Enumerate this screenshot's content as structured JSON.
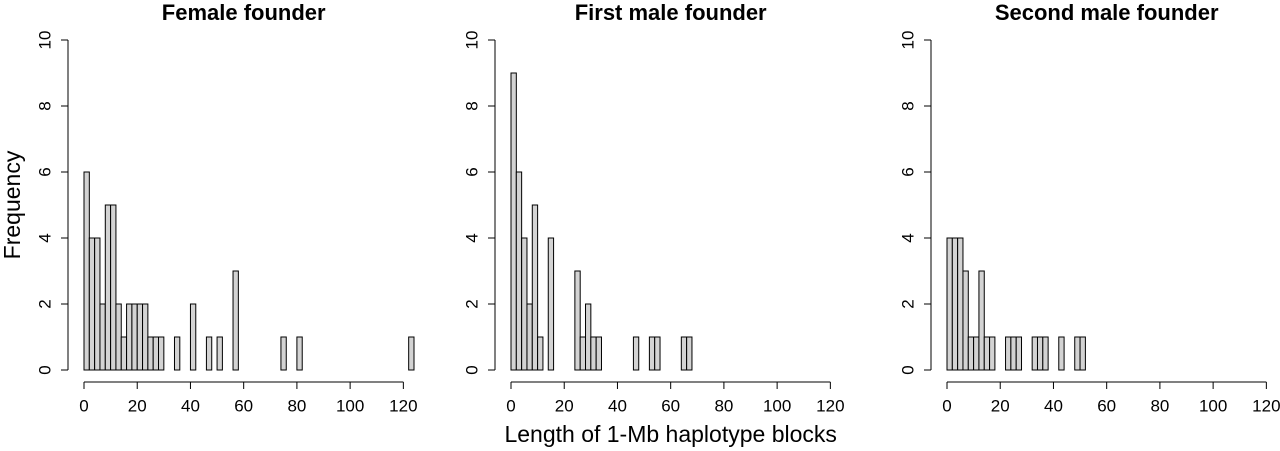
{
  "chart_data": [
    {
      "type": "histogram",
      "title": "Female founder",
      "ylabel": "Frequency",
      "bins": [
        0,
        2,
        4,
        6,
        8,
        10,
        12,
        14,
        16,
        18,
        20,
        22,
        24,
        26,
        28,
        30,
        32,
        34,
        36,
        38,
        40,
        42,
        44,
        46,
        48,
        50,
        52,
        54,
        56,
        58,
        60,
        62,
        64,
        66,
        68,
        70,
        72,
        74,
        76,
        78,
        80,
        82,
        84,
        86,
        88,
        90,
        92,
        94,
        96,
        98,
        100,
        102,
        104,
        106,
        108,
        110,
        112,
        114,
        116,
        118,
        120,
        122,
        124
      ],
      "counts": [
        6,
        4,
        4,
        2,
        5,
        5,
        2,
        1,
        2,
        2,
        2,
        2,
        1,
        1,
        1,
        0,
        0,
        1,
        0,
        0,
        2,
        0,
        0,
        1,
        0,
        1,
        0,
        0,
        3,
        0,
        0,
        0,
        0,
        0,
        0,
        0,
        0,
        1,
        0,
        0,
        1,
        0,
        0,
        0,
        0,
        0,
        0,
        0,
        0,
        0,
        0,
        0,
        0,
        0,
        0,
        0,
        0,
        0,
        0,
        0,
        0,
        1
      ],
      "color": "#d3d3d3",
      "xlim": [
        0,
        124
      ],
      "ylim": [
        0,
        10
      ],
      "xticks": [
        0,
        20,
        40,
        60,
        80,
        100,
        120
      ],
      "yticks": [
        0,
        2,
        4,
        6,
        8,
        10
      ]
    },
    {
      "type": "histogram",
      "title": "First male founder",
      "xlabel": "Length of 1-Mb haplotype blocks",
      "bins": [
        0,
        2,
        4,
        6,
        8,
        10,
        12,
        14,
        16,
        18,
        20,
        22,
        24,
        26,
        28,
        30,
        32,
        34,
        36,
        38,
        40,
        42,
        44,
        46,
        48,
        50,
        52,
        54,
        56,
        58,
        60,
        62,
        64,
        66,
        68
      ],
      "counts": [
        9,
        6,
        4,
        2,
        5,
        1,
        0,
        4,
        0,
        0,
        0,
        0,
        3,
        1,
        2,
        1,
        1,
        0,
        0,
        0,
        0,
        0,
        0,
        1,
        0,
        0,
        1,
        1,
        0,
        0,
        0,
        0,
        1,
        1
      ],
      "color": "#d3d3d3",
      "xlim": [
        0,
        124
      ],
      "ylim": [
        0,
        10
      ],
      "xticks": [
        0,
        20,
        40,
        60,
        80,
        100,
        120
      ],
      "yticks": [
        0,
        2,
        4,
        6,
        8,
        10
      ]
    },
    {
      "type": "histogram",
      "title": "Second male founder",
      "bins": [
        0,
        2,
        4,
        6,
        8,
        10,
        12,
        14,
        16,
        18,
        20,
        22,
        24,
        26,
        28,
        30,
        32,
        34,
        36,
        38,
        40,
        42,
        44,
        46,
        48,
        50,
        52
      ],
      "counts": [
        4,
        4,
        4,
        3,
        1,
        1,
        3,
        1,
        1,
        0,
        0,
        1,
        1,
        1,
        0,
        0,
        1,
        1,
        1,
        0,
        0,
        1,
        0,
        0,
        1,
        1
      ],
      "color": "#d3d3d3",
      "xlim": [
        0,
        124
      ],
      "ylim": [
        0,
        10
      ],
      "xticks": [
        0,
        20,
        40,
        60,
        80,
        100,
        120
      ],
      "yticks": [
        0,
        2,
        4,
        6,
        8,
        10
      ]
    }
  ]
}
